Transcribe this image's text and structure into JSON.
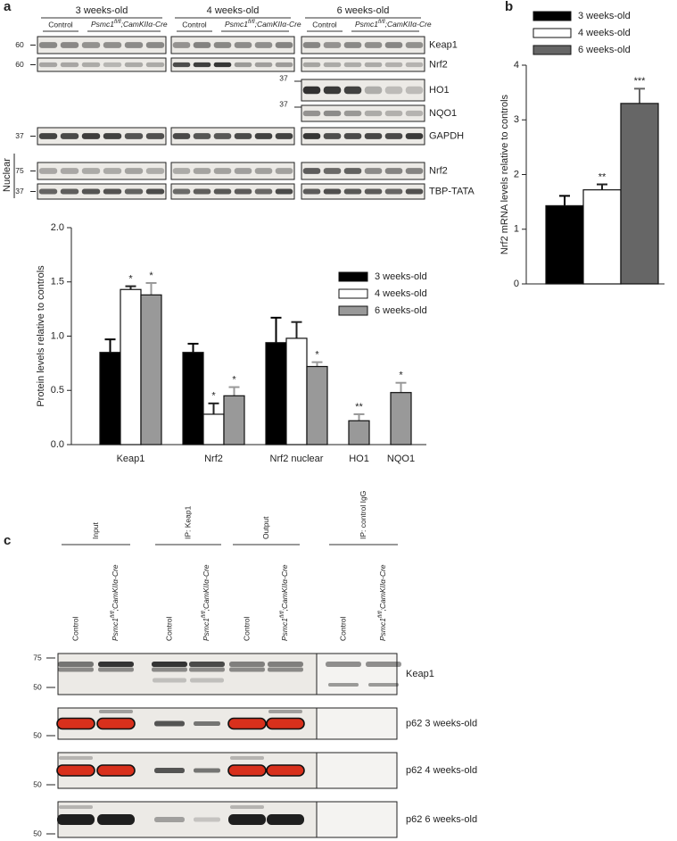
{
  "panel_labels": [
    "a",
    "b",
    "c"
  ],
  "blot_a": {
    "groups": [
      "3 weeks-old",
      "4 weeks-old",
      "6 weeks-old"
    ],
    "control": "Control",
    "mutant": {
      "gene": "Psmc1",
      "sup": "fl/fl",
      "rest": ";CamKIIα-Cre"
    },
    "rows": [
      {
        "label": "Keap1",
        "mw": "60"
      },
      {
        "label": "Nrf2",
        "mw": "60"
      },
      {
        "label": "HO1",
        "mw": "37"
      },
      {
        "label": "NQO1",
        "mw": "37"
      },
      {
        "label": "GAPDH",
        "mw": "37"
      },
      {
        "label": "Nrf2",
        "mw": "75"
      },
      {
        "label": "TBP-TATA",
        "mw": "37"
      }
    ],
    "nuclear": "Nuclear"
  },
  "chart_data": [
    {
      "type": "bar",
      "ylabel": "Protein levels relative to controls",
      "categories": [
        "Keap1",
        "Nrf2",
        "Nrf2 nuclear",
        "HO1",
        "NQO1"
      ],
      "series": [
        {
          "name": "3 weeks-old",
          "color": "#000000",
          "values": [
            0.85,
            0.85,
            0.94,
            null,
            null
          ],
          "errors": [
            0.12,
            0.08,
            0.23,
            null,
            null
          ],
          "annotations": [
            null,
            null,
            null,
            null,
            null
          ]
        },
        {
          "name": "4 weeks-old",
          "color": "#ffffff",
          "values": [
            1.43,
            0.28,
            0.98,
            null,
            null
          ],
          "errors": [
            0.03,
            0.1,
            0.15,
            null,
            null
          ],
          "annotations": [
            "*",
            "*",
            null,
            null,
            null
          ]
        },
        {
          "name": "6 weeks-old",
          "color": "#999999",
          "values": [
            1.38,
            0.45,
            0.72,
            0.22,
            0.48
          ],
          "errors": [
            0.11,
            0.08,
            0.04,
            0.06,
            0.09
          ],
          "annotations": [
            "*",
            "*",
            "*",
            "**",
            "*"
          ]
        }
      ],
      "ylim": [
        0,
        2
      ],
      "yticks": [
        {
          "value": 0,
          "label": "0.0"
        },
        {
          "value": 0.5,
          "label": "0.5"
        },
        {
          "value": 1,
          "label": "1.0"
        },
        {
          "value": 1.5,
          "label": "1.5"
        },
        {
          "value": 2,
          "label": "2.0"
        }
      ],
      "legend": "center-right"
    },
    {
      "type": "bar",
      "ylabel": "Nrf2 mRNA levels relative to controls",
      "series": [
        {
          "name": "3 weeks-old",
          "color": "#000000",
          "values": [
            1.43
          ],
          "errors": [
            0.18
          ],
          "annotations": [
            null
          ]
        },
        {
          "name": "4 weeks-old",
          "color": "#ffffff",
          "values": [
            1.72
          ],
          "errors": [
            0.1
          ],
          "annotations": [
            "**"
          ]
        },
        {
          "name": "6 weeks-old",
          "color": "#666666",
          "values": [
            3.3
          ],
          "errors": [
            0.27
          ],
          "annotations": [
            "***"
          ]
        }
      ],
      "ylim": [
        0,
        4
      ],
      "yticks": [
        0,
        1,
        2,
        3,
        4
      ],
      "legend": "top-left"
    }
  ],
  "blot_c": {
    "headers": [
      "Input",
      "IP: Keap1",
      "Output",
      "IP: control IgG"
    ],
    "rows": [
      {
        "label": "Keap1",
        "mw": [
          "75",
          "50"
        ]
      },
      {
        "label": "p62  3 weeks-old",
        "mw": [
          "50"
        ]
      },
      {
        "label": "p62  4 weeks-old",
        "mw": [
          "50"
        ]
      },
      {
        "label": "p62  6 weeks-old",
        "mw": [
          "50"
        ]
      }
    ]
  }
}
